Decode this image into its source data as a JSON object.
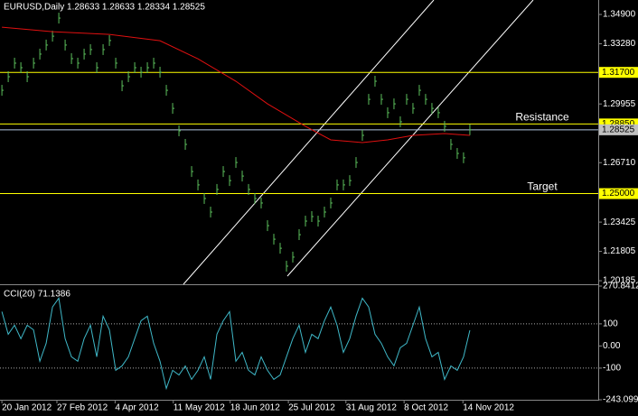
{
  "chart_data": {
    "type": "ohlc",
    "title": "EURUSD,Daily  1.28633 1.28633 1.28334 1.28525",
    "xlim": [
      -0.3,
      94.3
    ],
    "xticks": [
      {
        "value": 0,
        "label": "20 Jan 2012"
      },
      {
        "value": 8.7,
        "label": "27 Feb 2012"
      },
      {
        "value": 17.9,
        "label": "4 Apr 2012"
      },
      {
        "value": 27.1,
        "label": "11 May 2012"
      },
      {
        "value": 36.1,
        "label": "18 Jun 2012"
      },
      {
        "value": 45.3,
        "label": "25 Jul 2012"
      },
      {
        "value": 54.4,
        "label": "31 Aug 2012"
      },
      {
        "value": 63.6,
        "label": "8 Oct 2012"
      },
      {
        "value": 72.9,
        "label": "14 Nov 2012"
      }
    ],
    "ylim": [
      1.1999,
      1.357
    ],
    "yticks": [
      {
        "value": 1.349,
        "label": "1.34900"
      },
      {
        "value": 1.3328,
        "label": "1.33280"
      },
      {
        "value": 1.29955,
        "label": "1.29955"
      },
      {
        "value": 1.2671,
        "label": "1.26710"
      },
      {
        "value": 1.23425,
        "label": "1.23425"
      },
      {
        "value": 1.21805,
        "label": "1.21805"
      },
      {
        "value": 1.20185,
        "label": "1.20185"
      }
    ],
    "price": {
      "color": "#5cbf5c",
      "values": [
        1.3071,
        1.3146,
        1.3221,
        1.3196,
        1.3146,
        1.3221,
        1.3271,
        1.3321,
        1.337,
        1.347,
        1.3321,
        1.3246,
        1.3221,
        1.3271,
        1.3296,
        1.3196,
        1.3296,
        1.3346,
        1.3221,
        1.3096,
        1.3146,
        1.3196,
        1.3171,
        1.3196,
        1.3221,
        1.3171,
        1.3071,
        1.2971,
        1.2847,
        1.2772,
        1.2622,
        1.2548,
        1.2473,
        1.2398,
        1.2523,
        1.2622,
        1.2572,
        1.2672,
        1.2597,
        1.2523,
        1.2473,
        1.2448,
        1.2323,
        1.2248,
        1.2198,
        1.2099,
        1.2149,
        1.2273,
        1.2348,
        1.2373,
        1.2348,
        1.2398,
        1.2448,
        1.2548,
        1.2548,
        1.2572,
        1.2672,
        1.2822,
        1.3021,
        1.3121,
        1.3021,
        1.2947,
        1.2996,
        1.2897,
        1.3021,
        1.2971,
        1.3071,
        1.3021,
        1.2971,
        1.2947,
        1.2872,
        1.2772,
        1.2722,
        1.2698,
        1.2853
      ]
    },
    "moving_average": {
      "color": "#e01010",
      "x": [
        0,
        8,
        17,
        25,
        31,
        37,
        42,
        48,
        52,
        57,
        61,
        65,
        70,
        74
      ],
      "values": [
        1.342,
        1.3395,
        1.338,
        1.3345,
        1.3245,
        1.3121,
        1.2996,
        1.2872,
        1.2797,
        1.2782,
        1.2797,
        1.2822,
        1.2832,
        1.2822
      ]
    },
    "levels": [
      {
        "value": 1.317,
        "label": "1.31700"
      },
      {
        "value": 1.2885,
        "label": "1.28850",
        "note": "Resistance"
      },
      {
        "value": 1.25,
        "label": "1.25000",
        "note": "Target"
      }
    ],
    "level_color": "#ffff00",
    "current": {
      "value": 1.28525,
      "label": "1.28525"
    },
    "indicator": {
      "title": "CCI(20) 71.1386",
      "color": "#3fb8c8",
      "ylim": [
        -243.0997,
        270.8412
      ],
      "yticks": [
        {
          "value": 270.8412,
          "label": "270.8412"
        },
        100,
        {
          "value": 0,
          "label": "0.00"
        },
        -100,
        {
          "value": -243.0997,
          "label": "-243.0997"
        }
      ],
      "dotted_levels": [
        100,
        -100
      ],
      "values": [
        155,
        53,
        94,
        33,
        94,
        73,
        -69,
        12,
        176,
        216,
        33,
        -49,
        -69,
        33,
        94,
        -49,
        135,
        73,
        -110,
        -90,
        -49,
        33,
        114,
        135,
        12,
        -69,
        -192,
        -110,
        -131,
        -90,
        -151,
        -110,
        -49,
        -151,
        53,
        114,
        155,
        -69,
        -29,
        -110,
        -131,
        -49,
        -110,
        -151,
        -131,
        -49,
        33,
        94,
        -29,
        53,
        33,
        114,
        176,
        94,
        -29,
        33,
        135,
        216,
        176,
        53,
        12,
        -49,
        -90,
        -8,
        12,
        94,
        176,
        33,
        -49,
        -29,
        -151,
        -90,
        -110,
        -49,
        71.1386
      ]
    }
  }
}
